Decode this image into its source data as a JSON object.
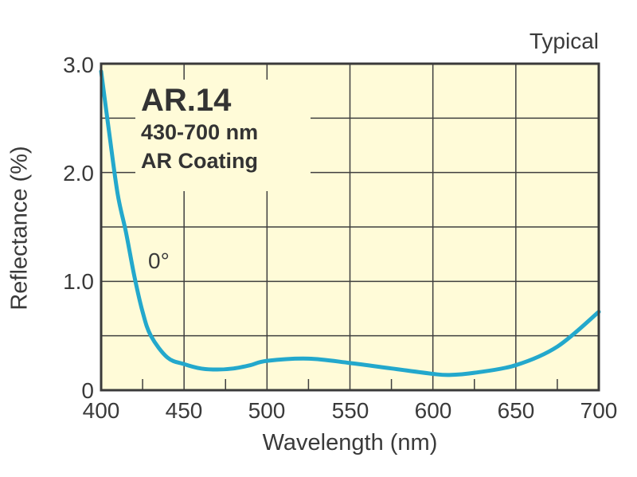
{
  "chart_data": {
    "type": "line",
    "title": "AR.14",
    "subtitle": [
      "430-700 nm",
      "AR Coating"
    ],
    "corner_label": "Typical",
    "xlabel": "Wavelength (nm)",
    "ylabel": "Reflectance (%)",
    "xlim": [
      400,
      700
    ],
    "ylim": [
      0,
      3.0
    ],
    "x_ticks": [
      "400",
      "450",
      "500",
      "550",
      "600",
      "650",
      "700"
    ],
    "y_ticks": [
      "0",
      "1.0",
      "2.0",
      "3.0"
    ],
    "grid": true,
    "background": "#fffbd8",
    "series": [
      {
        "name": "0°",
        "color": "#23a8cc",
        "x": [
          400,
          405,
          410,
          415,
          420,
          425,
          430,
          440,
          450,
          460,
          470,
          480,
          490,
          500,
          525,
          550,
          575,
          600,
          610,
          625,
          650,
          675,
          700
        ],
        "values": [
          2.93,
          2.35,
          1.8,
          1.45,
          1.05,
          0.72,
          0.5,
          0.3,
          0.24,
          0.2,
          0.19,
          0.2,
          0.23,
          0.27,
          0.29,
          0.25,
          0.2,
          0.15,
          0.14,
          0.16,
          0.23,
          0.4,
          0.72
        ]
      }
    ],
    "annotations": [
      {
        "text": "0°",
        "x": 428,
        "y": 1.15
      }
    ]
  }
}
